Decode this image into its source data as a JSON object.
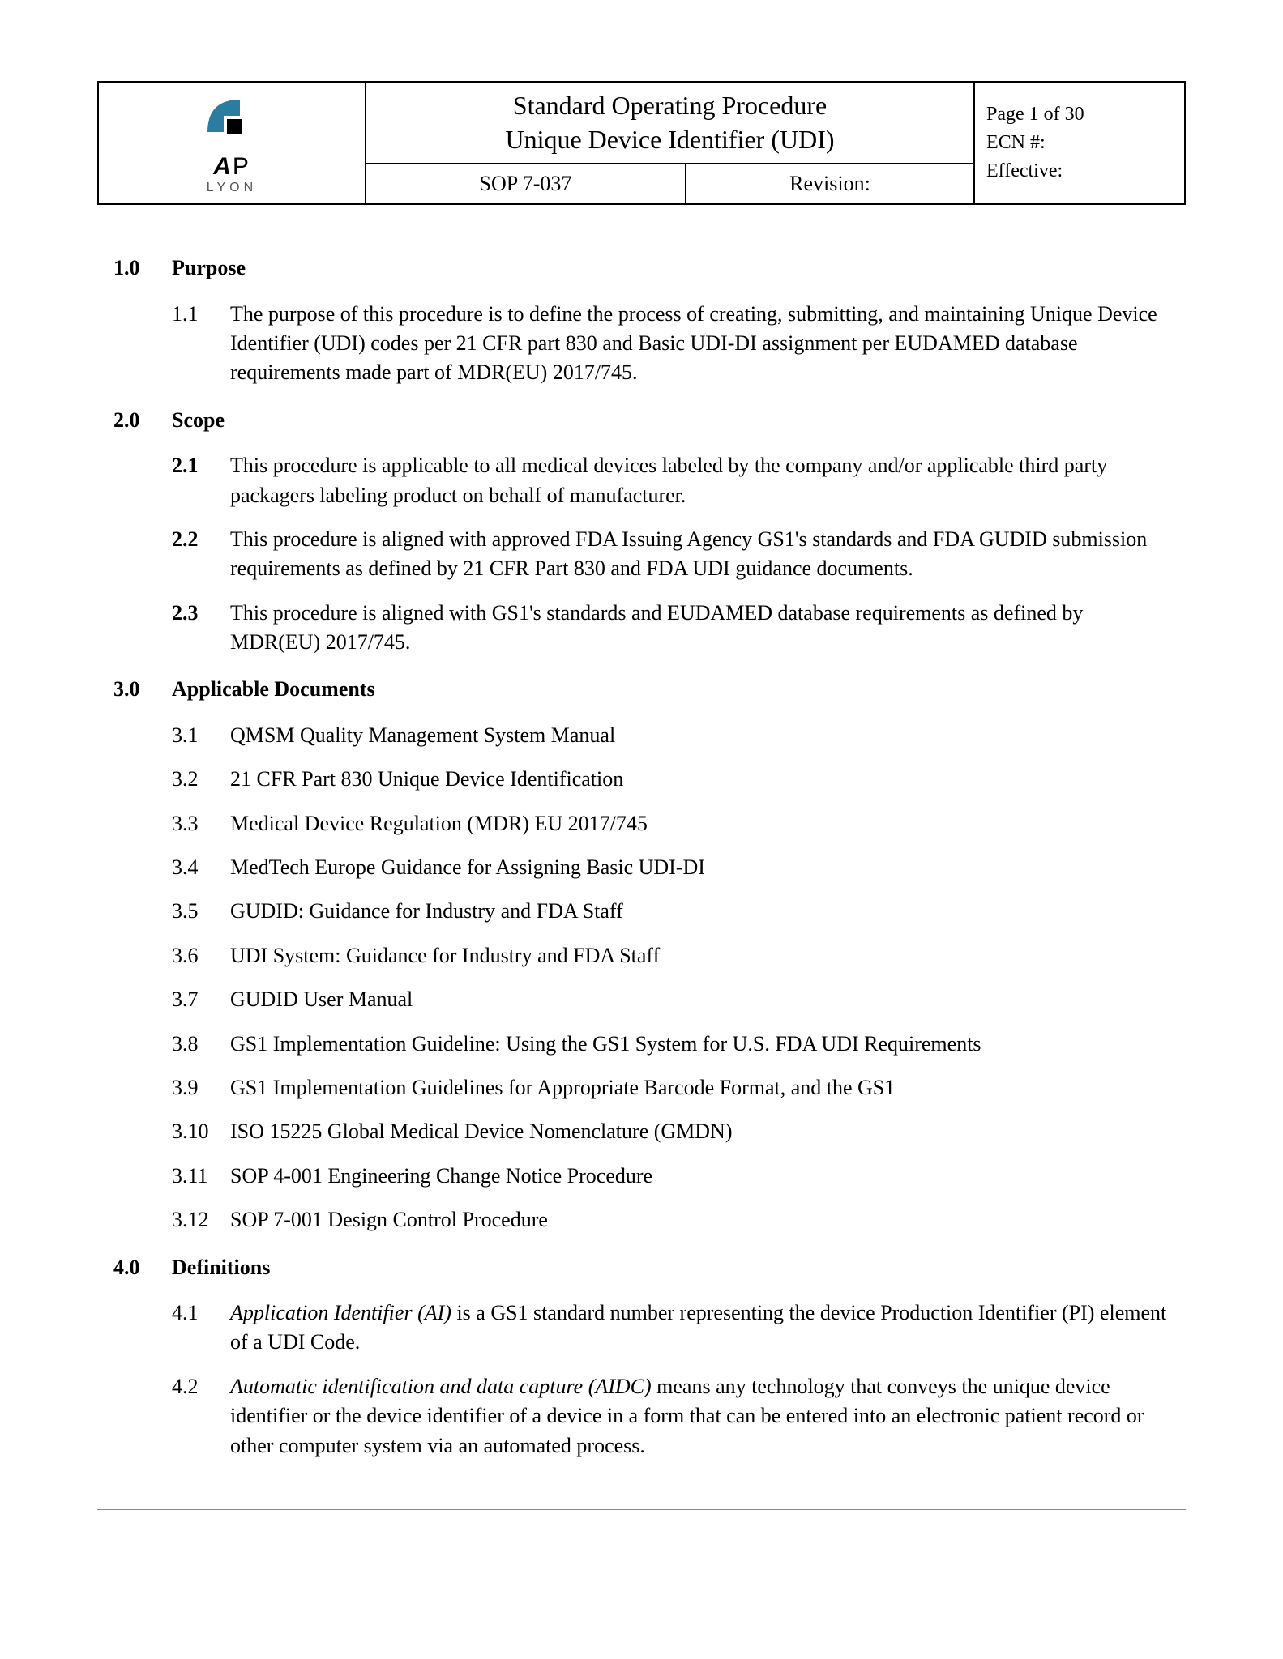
{
  "header": {
    "logo": {
      "line1_a": "A",
      "line1_p": "P",
      "line2": "LYON"
    },
    "title_line1": "Standard Operating Procedure",
    "title_line2": "Unique Device Identifier (UDI)",
    "sop": "SOP 7-037",
    "revision_label": "Revision:",
    "page": "Page  1 of 30",
    "ecn": "ECN #:",
    "effective": "Effective:"
  },
  "sections": [
    {
      "num": "1.0",
      "title": "Purpose",
      "items": [
        {
          "num": "1.1",
          "text": "The purpose of this procedure is to define the process of creating, submitting, and maintaining Unique Device Identifier (UDI) codes per 21 CFR part 830 and Basic UDI-DI assignment per EUDAMED database requirements made part of MDR(EU) 2017/745."
        }
      ]
    },
    {
      "num": "2.0",
      "title": "Scope",
      "items": [
        {
          "num": "2.1",
          "bold": true,
          "text": "This procedure is applicable to all medical devices labeled by the company and/or applicable third party packagers labeling product on behalf of manufacturer."
        },
        {
          "num": "2.2",
          "bold": true,
          "text": "This procedure is aligned with approved FDA Issuing Agency GS1's standards and FDA GUDID submission requirements as defined by 21 CFR Part 830 and FDA UDI guidance documents."
        },
        {
          "num": "2.3",
          "bold": true,
          "text": "This procedure is aligned with GS1's standards and EUDAMED database requirements as defined by MDR(EU) 2017/745."
        }
      ]
    },
    {
      "num": "3.0",
      "title": "Applicable Documents",
      "items": [
        {
          "num": "3.1",
          "text": "QMSM Quality Management System Manual"
        },
        {
          "num": "3.2",
          "text": "21 CFR Part 830 Unique Device Identification"
        },
        {
          "num": "3.3",
          "text": "Medical Device Regulation (MDR) EU 2017/745"
        },
        {
          "num": "3.4",
          "text": "MedTech Europe Guidance for Assigning Basic UDI-DI"
        },
        {
          "num": "3.5",
          "text": "GUDID: Guidance for Industry and FDA Staff"
        },
        {
          "num": "3.6",
          "text": "UDI System: Guidance for Industry and FDA Staff"
        },
        {
          "num": "3.7",
          "text": "GUDID User Manual"
        },
        {
          "num": "3.8",
          "text": "GS1 Implementation Guideline: Using the GS1 System for U.S. FDA UDI Requirements"
        },
        {
          "num": "3.9",
          "text": "GS1 Implementation Guidelines for Appropriate Barcode Format, and the GS1"
        },
        {
          "num": "3.10",
          "text": "ISO 15225 Global Medical Device Nomenclature (GMDN)"
        },
        {
          "num": "3.11",
          "text": "SOP 4-001 Engineering Change Notice Procedure"
        },
        {
          "num": "3.12",
          "text": "SOP 7-001 Design Control Procedure"
        }
      ]
    },
    {
      "num": "4.0",
      "title": "Definitions",
      "items": [
        {
          "num": "4.1",
          "term": "Application Identifier (AI)",
          "text": " is a GS1 standard number representing the device Production Identifier (PI) element of a UDI Code."
        },
        {
          "num": "4.2",
          "term": "Automatic identification and data capture (AIDC)",
          "text": " means any technology that conveys the unique device identifier or the device identifier of a device in a form that can be entered into an electronic patient record or other computer system via an automated process."
        }
      ]
    }
  ],
  "colors": {
    "logo_teal": "#2a7ca0",
    "logo_black": "#000000"
  }
}
